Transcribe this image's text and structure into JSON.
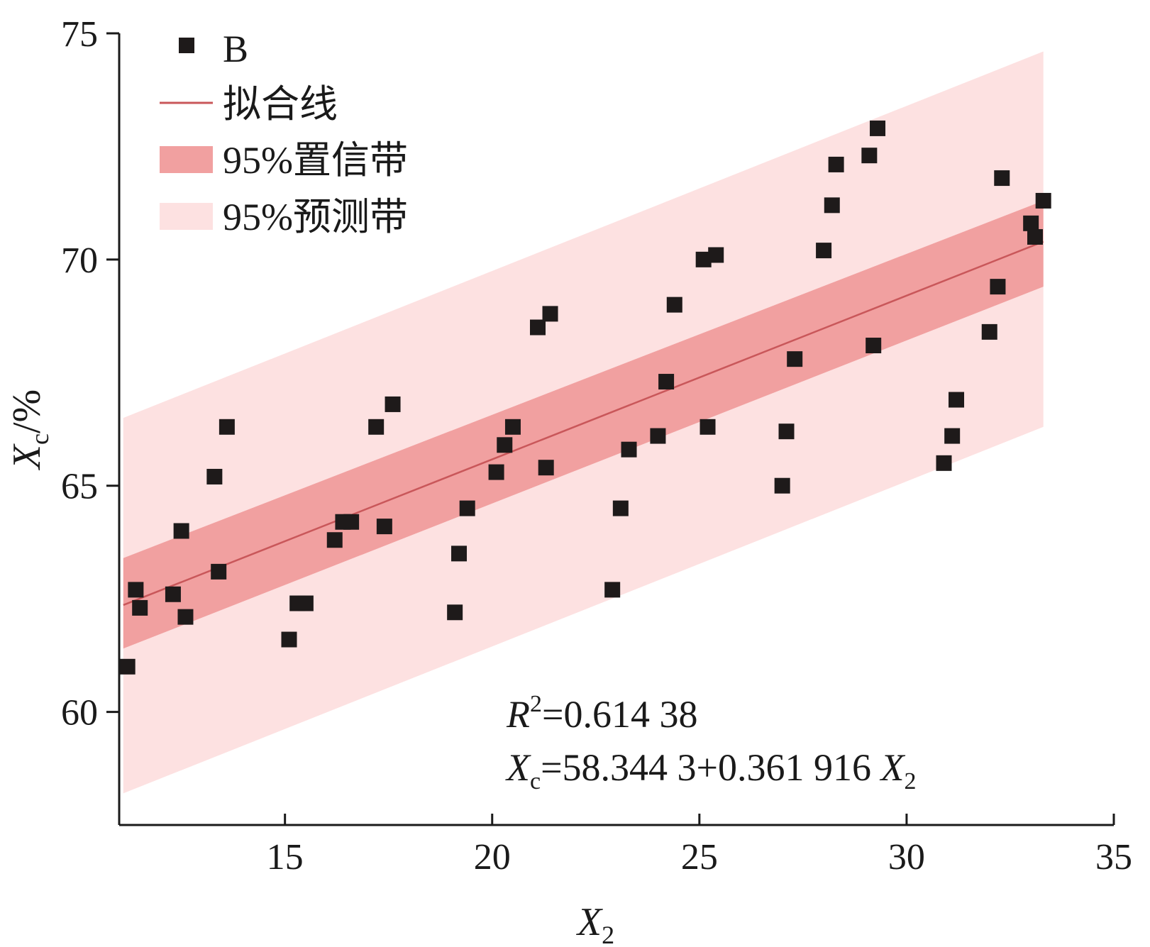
{
  "chart_data": {
    "type": "scatter",
    "xlabel": "X",
    "xlabel_sub": "2",
    "ylabel": "X",
    "ylabel_sub": "c",
    "ylabel_unit": "/%",
    "xlim": [
      11,
      35
    ],
    "ylim": [
      57.5,
      75
    ],
    "xticks": [
      15,
      20,
      25,
      30,
      35
    ],
    "yticks": [
      60,
      65,
      70,
      75
    ],
    "grid": false,
    "legend_position": "top-left",
    "legend": {
      "points": "B",
      "fit_line": "拟合线",
      "confidence_band": "95%置信带",
      "prediction_band": "95%预测带"
    },
    "colors": {
      "points": "#1e1a1a",
      "fit_line": "#c9575a",
      "confidence_band": "#f1a0a0",
      "prediction_band": "#fde1e1"
    },
    "fit": {
      "intercept": 58.3443,
      "slope": 0.361916,
      "x_range": [
        11.1,
        33.3
      ]
    },
    "confidence_band": {
      "x": [
        11.1,
        33.3
      ],
      "lower": [
        61.4,
        69.4
      ],
      "upper": [
        63.4,
        71.3
      ]
    },
    "prediction_band": {
      "x": [
        11.1,
        33.3
      ],
      "lower": [
        58.2,
        66.3
      ],
      "upper": [
        66.5,
        74.6
      ]
    },
    "series": [
      {
        "name": "B",
        "points": [
          [
            11.2,
            61.0
          ],
          [
            11.4,
            62.7
          ],
          [
            11.5,
            62.3
          ],
          [
            12.3,
            62.6
          ],
          [
            12.5,
            64.0
          ],
          [
            12.6,
            62.1
          ],
          [
            13.3,
            65.2
          ],
          [
            13.4,
            63.1
          ],
          [
            13.6,
            66.3
          ],
          [
            15.1,
            61.6
          ],
          [
            15.3,
            62.4
          ],
          [
            15.5,
            62.4
          ],
          [
            16.2,
            63.8
          ],
          [
            16.4,
            64.2
          ],
          [
            16.6,
            64.2
          ],
          [
            17.2,
            66.3
          ],
          [
            17.4,
            64.1
          ],
          [
            17.6,
            66.8
          ],
          [
            19.1,
            62.2
          ],
          [
            19.2,
            63.5
          ],
          [
            19.4,
            64.5
          ],
          [
            20.1,
            65.3
          ],
          [
            20.3,
            65.9
          ],
          [
            20.5,
            66.3
          ],
          [
            21.1,
            68.5
          ],
          [
            21.3,
            65.4
          ],
          [
            21.4,
            68.8
          ],
          [
            22.9,
            62.7
          ],
          [
            23.1,
            64.5
          ],
          [
            23.3,
            65.8
          ],
          [
            24.0,
            66.1
          ],
          [
            24.2,
            67.3
          ],
          [
            24.4,
            69.0
          ],
          [
            25.1,
            70.0
          ],
          [
            25.2,
            66.3
          ],
          [
            25.4,
            70.1
          ],
          [
            27.0,
            65.0
          ],
          [
            27.1,
            66.2
          ],
          [
            27.3,
            67.8
          ],
          [
            28.0,
            70.2
          ],
          [
            28.2,
            71.2
          ],
          [
            28.3,
            72.1
          ],
          [
            29.1,
            72.3
          ],
          [
            29.2,
            68.1
          ],
          [
            29.3,
            72.9
          ],
          [
            30.9,
            65.5
          ],
          [
            31.1,
            66.1
          ],
          [
            31.2,
            66.9
          ],
          [
            32.0,
            68.4
          ],
          [
            32.2,
            69.4
          ],
          [
            32.3,
            71.8
          ],
          [
            33.0,
            70.8
          ],
          [
            33.1,
            70.5
          ],
          [
            33.3,
            71.3
          ]
        ]
      }
    ],
    "annotations": {
      "r2_symbol": "R",
      "r2_sup": "2",
      "r2_value": "=0.614 38",
      "eq_lhs": "X",
      "eq_lhs_sub": "c",
      "eq_rhs": "=58.344 3+0.361 916 ",
      "eq_var": "X",
      "eq_var_sub": "2"
    }
  }
}
